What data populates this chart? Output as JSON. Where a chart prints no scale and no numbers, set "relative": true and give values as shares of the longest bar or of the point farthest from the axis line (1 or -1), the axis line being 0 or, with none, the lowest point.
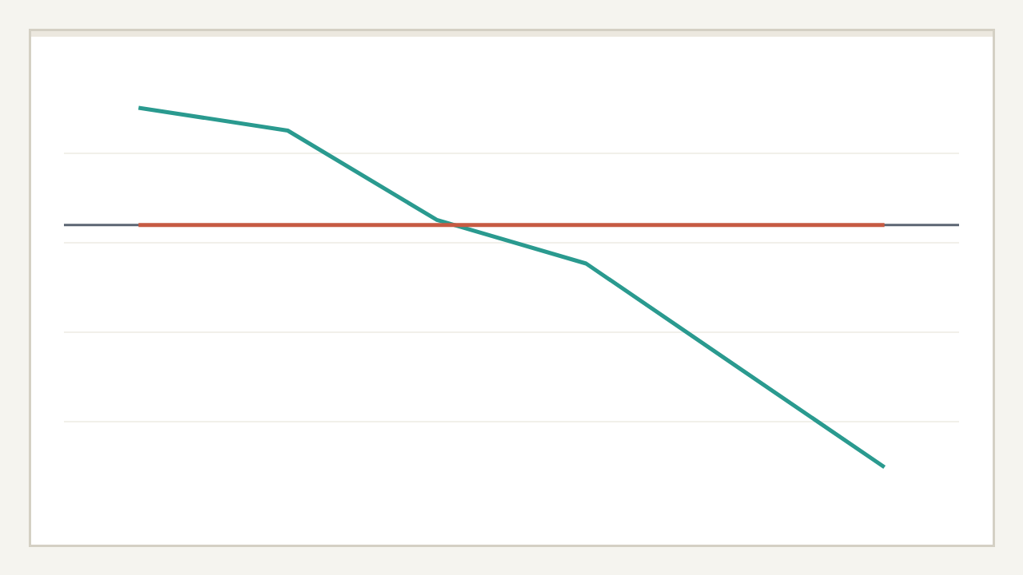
{
  "chart_data": {
    "type": "line",
    "relative": true,
    "categories": [
      null,
      null,
      null,
      null,
      null,
      null
    ],
    "series": [
      {
        "color": "#2a9a8f",
        "values": [
          0.484,
          0.39,
          0.021,
          -0.159,
          -0.58,
          -1
        ]
      },
      {
        "color": "#c65a42",
        "values": [
          0,
          0,
          0,
          0,
          0,
          0
        ]
      }
    ],
    "grid": "y"
  }
}
